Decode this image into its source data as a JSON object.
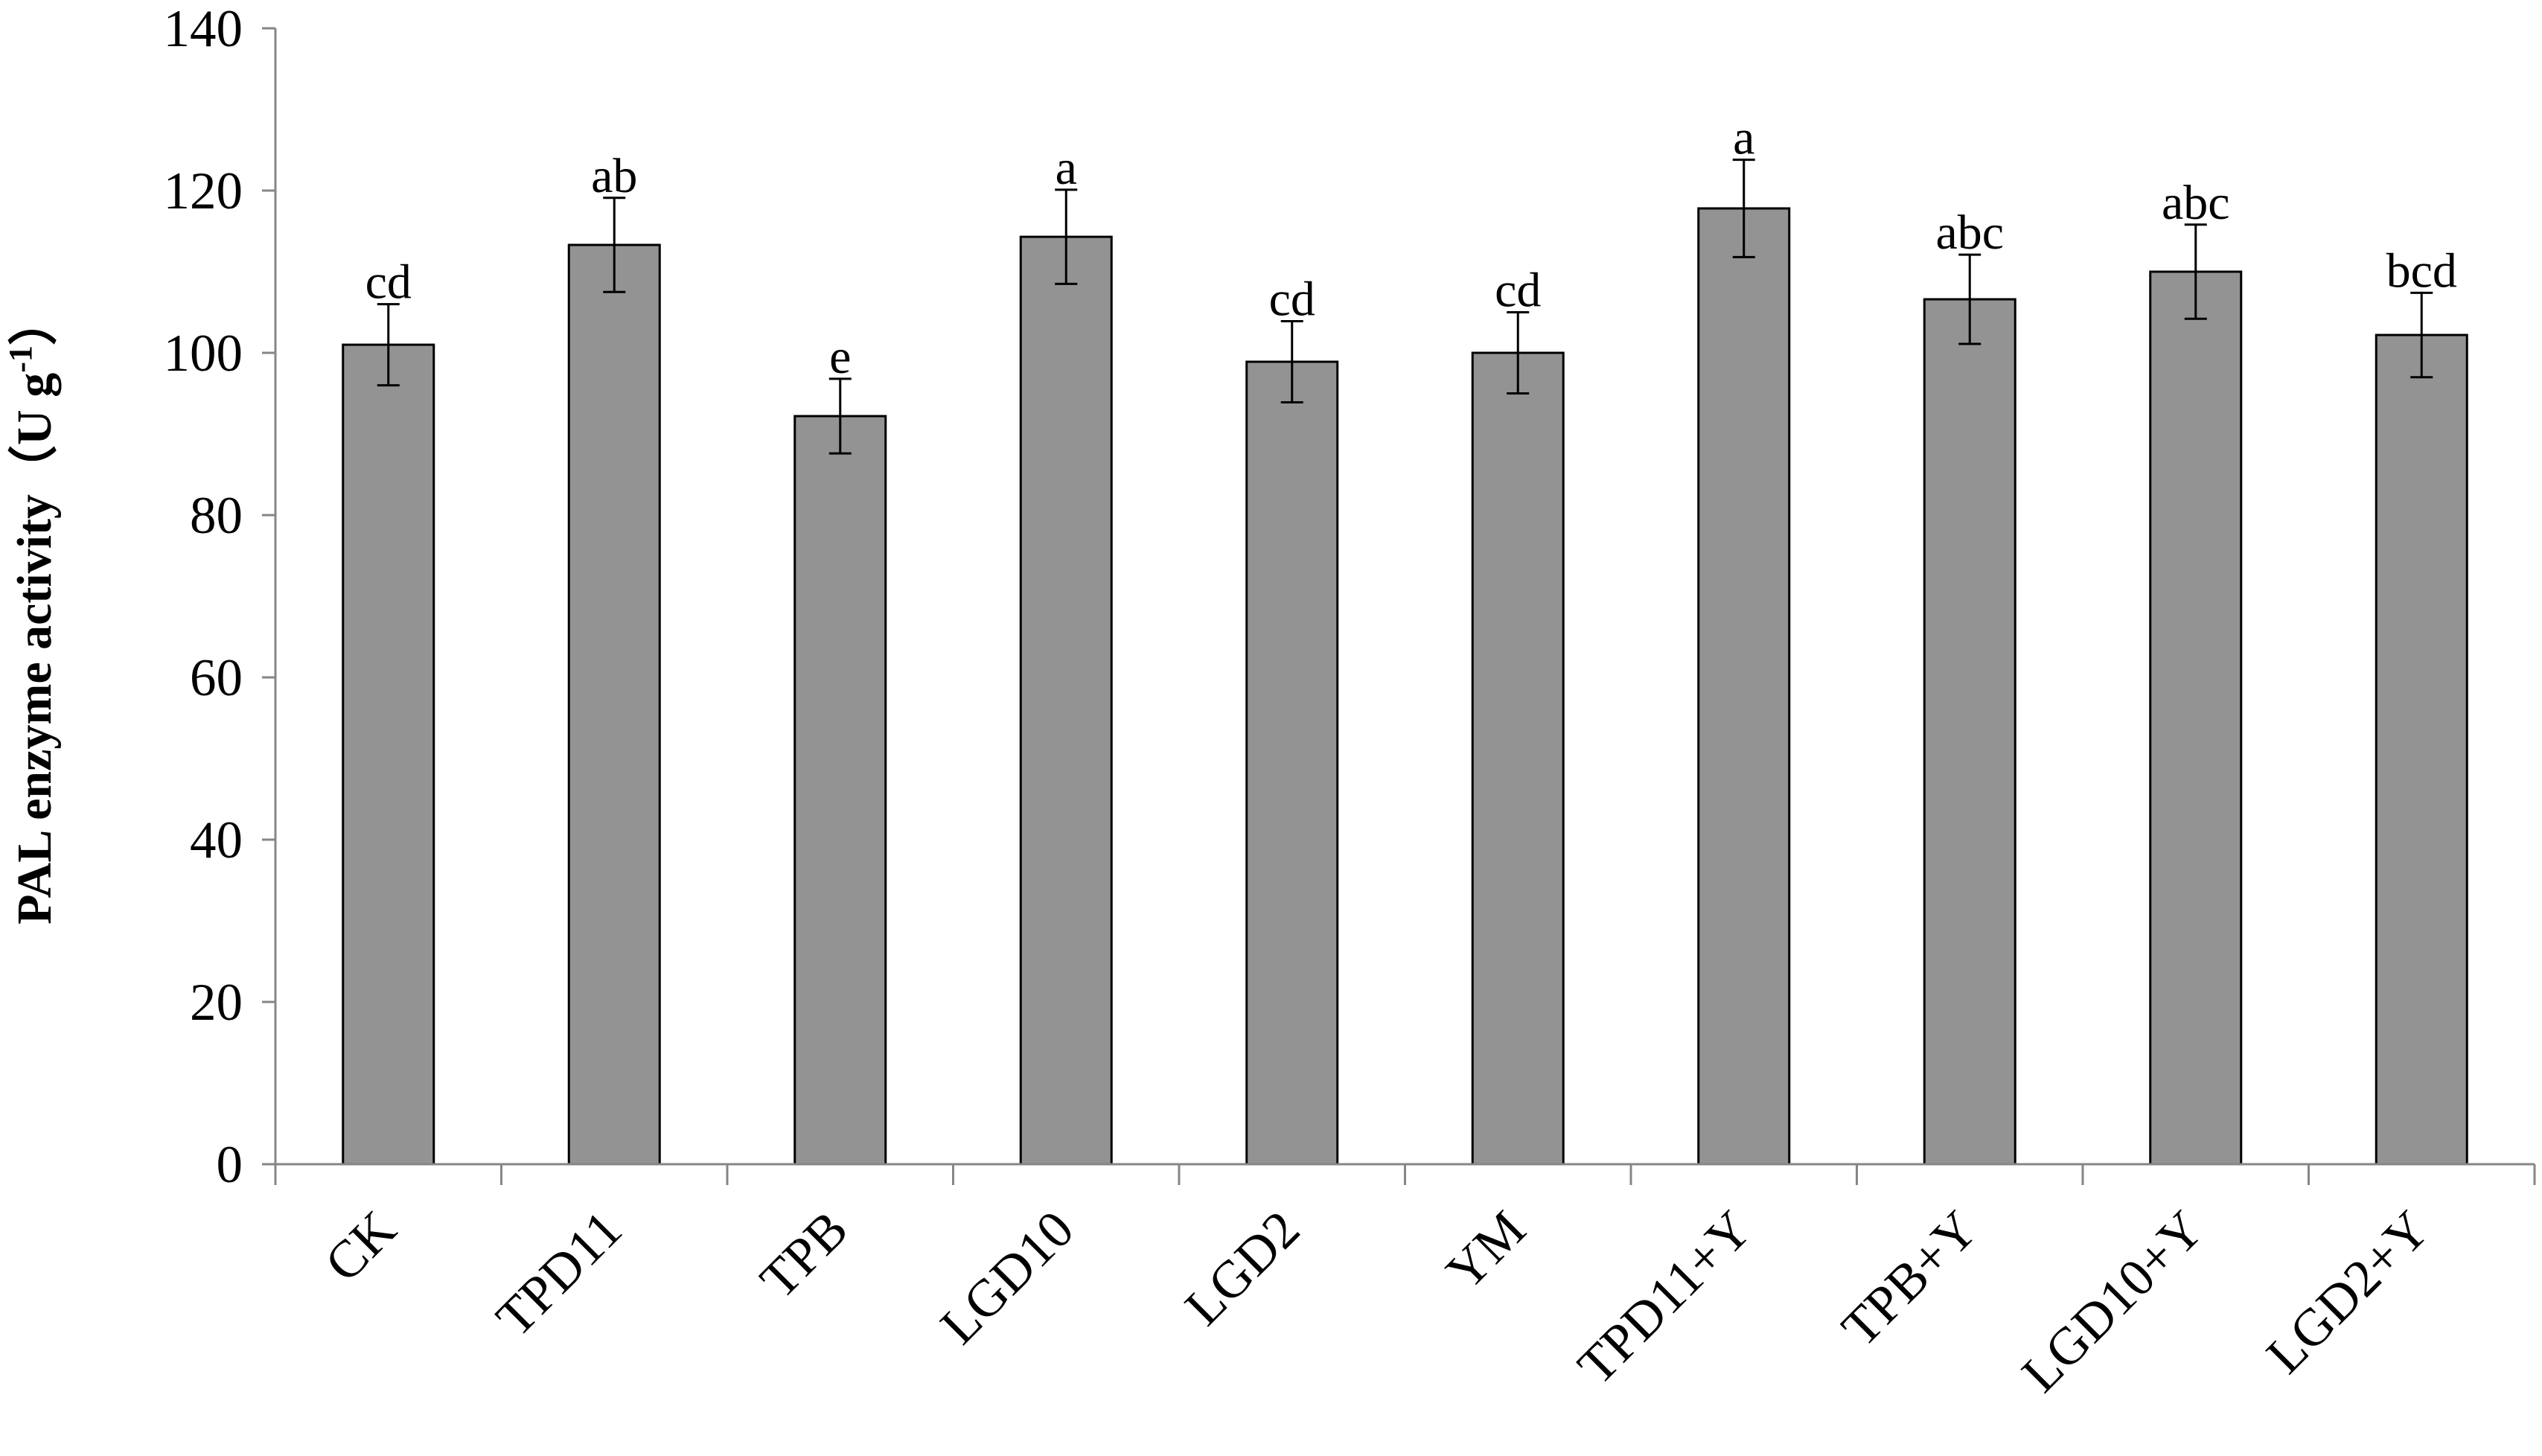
{
  "chart_data": {
    "type": "bar",
    "title": "",
    "xlabel": "",
    "ylabel": {
      "main": "PAL enzyme activity（U g",
      "sup": "-1",
      "close": "）"
    },
    "ylim": [
      0,
      140
    ],
    "yticks": [
      0,
      20,
      40,
      60,
      80,
      100,
      120,
      140
    ],
    "grid": false,
    "legend": "none",
    "categories": [
      "CK",
      "TPD11",
      "TPB",
      "LGD10",
      "LGD2",
      "YM",
      "TPD11+Y",
      "TPB+Y",
      "LGD10+Y",
      "LGD2+Y"
    ],
    "values": [
      101,
      113.3,
      92.2,
      114.3,
      98.9,
      100,
      117.8,
      106.6,
      110,
      102.2
    ],
    "errors": [
      5,
      5.8,
      4.6,
      5.8,
      5,
      5,
      6,
      5.5,
      5.8,
      5.2
    ],
    "significance": [
      "cd",
      "ab",
      "e",
      "a",
      "cd",
      "cd",
      "a",
      "abc",
      "abc",
      "bcd"
    ],
    "bar_color": "#939393",
    "bar_edge_color": "#000000",
    "axis_color": "#868686"
  }
}
